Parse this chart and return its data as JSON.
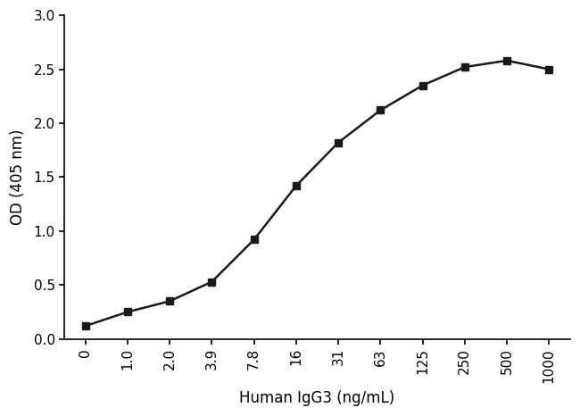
{
  "x_labels": [
    "0",
    "1.0",
    "2.0",
    "3.9",
    "7.8",
    "16",
    "31",
    "63",
    "125",
    "250",
    "500",
    "1000"
  ],
  "x_positions": [
    0,
    1,
    2,
    3,
    4,
    5,
    6,
    7,
    8,
    9,
    10,
    11
  ],
  "y_values": [
    0.12,
    0.25,
    0.35,
    0.53,
    0.92,
    1.42,
    1.82,
    2.12,
    2.35,
    2.52,
    2.58,
    2.5
  ],
  "line_color": "#1a1a1a",
  "marker": "s",
  "marker_size": 6,
  "marker_facecolor": "#1a1a1a",
  "line_width": 1.8,
  "xlabel": "Human IgG3 (ng/mL)",
  "ylabel": "OD (405 nm)",
  "ylim": [
    0.0,
    3.0
  ],
  "yticks": [
    0.0,
    0.5,
    1.0,
    1.5,
    2.0,
    2.5,
    3.0
  ],
  "background_color": "#ffffff",
  "xlabel_fontsize": 12,
  "ylabel_fontsize": 12,
  "tick_fontsize": 11
}
